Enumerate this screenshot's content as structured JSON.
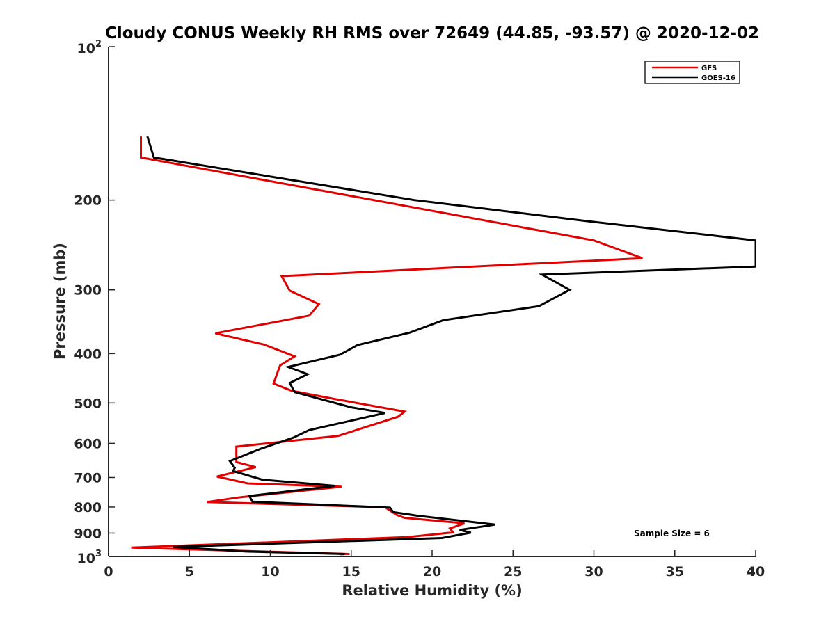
{
  "chart_data": {
    "type": "line",
    "title": "Cloudy CONUS Weekly RH RMS over 72649 (44.85, -93.57) @ 2020-12-02",
    "xlabel": "Relative Humidity (%)",
    "ylabel": "Pressure (mb)",
    "xlim": [
      0,
      40
    ],
    "ylim": [
      100,
      1000
    ],
    "y_scale": "log",
    "y_reversed": true,
    "xticks": [
      0,
      5,
      10,
      15,
      20,
      25,
      30,
      35,
      40
    ],
    "xtick_labels": [
      "0",
      "5",
      "10",
      "15",
      "20",
      "25",
      "30",
      "35",
      "40"
    ],
    "yticks": [
      200,
      300,
      400,
      500,
      600,
      700,
      800,
      900
    ],
    "ytick_labels": [
      "200",
      "300",
      "400",
      "500",
      "600",
      "700",
      "800",
      "900"
    ],
    "ytick_end_labels": {
      "top": {
        "base": "10",
        "exp": "2"
      },
      "bottom": {
        "base": "10",
        "exp": "3"
      }
    },
    "grid": false,
    "legend_position": "top-right",
    "annotation": "Sample Size = 6",
    "series": [
      {
        "name": "GFS",
        "color": "#e00000",
        "points": [
          [
            2.0,
            150
          ],
          [
            2.0,
            165
          ],
          [
            30.0,
            240
          ],
          [
            33.0,
            260
          ],
          [
            10.7,
            282
          ],
          [
            11.2,
            301
          ],
          [
            13.0,
            320
          ],
          [
            12.4,
            337
          ],
          [
            6.6,
            365
          ],
          [
            9.6,
            384
          ],
          [
            11.5,
            405
          ],
          [
            10.6,
            422
          ],
          [
            10.2,
            458
          ],
          [
            11.3,
            473
          ],
          [
            13.8,
            490
          ],
          [
            18.3,
            520
          ],
          [
            17.9,
            532
          ],
          [
            14.2,
            580
          ],
          [
            7.9,
            609
          ],
          [
            7.9,
            653
          ],
          [
            9.1,
            668
          ],
          [
            6.7,
            697
          ],
          [
            8.6,
            719
          ],
          [
            14.4,
            730
          ],
          [
            8.2,
            765
          ],
          [
            6.1,
            782
          ],
          [
            17.1,
            801
          ],
          [
            17.8,
            829
          ],
          [
            18.3,
            840
          ],
          [
            22.0,
            861
          ],
          [
            21.1,
            881
          ],
          [
            21.3,
            897
          ],
          [
            18.5,
            916
          ],
          [
            1.4,
            961
          ],
          [
            14.9,
            989
          ],
          [
            14.3,
            990
          ]
        ]
      },
      {
        "name": "GOES-16",
        "color": "#000000",
        "points": [
          [
            2.4,
            150
          ],
          [
            2.8,
            165
          ],
          [
            18.9,
            200
          ],
          [
            29.6,
            220
          ],
          [
            40.0,
            240
          ],
          [
            40.0,
            270
          ],
          [
            26.8,
            280
          ],
          [
            28.5,
            300
          ],
          [
            26.6,
            323
          ],
          [
            20.7,
            344
          ],
          [
            18.6,
            364
          ],
          [
            15.4,
            385
          ],
          [
            14.3,
            402
          ],
          [
            11.1,
            425
          ],
          [
            12.3,
            439
          ],
          [
            11.2,
            457
          ],
          [
            11.5,
            476
          ],
          [
            15.0,
            510
          ],
          [
            17.1,
            523
          ],
          [
            12.4,
            565
          ],
          [
            11.4,
            585
          ],
          [
            9.4,
            615
          ],
          [
            7.5,
            650
          ],
          [
            7.8,
            670
          ],
          [
            7.7,
            680
          ],
          [
            9.5,
            707
          ],
          [
            14.0,
            727
          ],
          [
            8.7,
            761
          ],
          [
            8.9,
            781
          ],
          [
            17.4,
            802
          ],
          [
            17.6,
            819
          ],
          [
            19.1,
            832
          ],
          [
            23.9,
            866
          ],
          [
            21.7,
            887
          ],
          [
            22.4,
            898
          ],
          [
            20.6,
            920
          ],
          [
            4.0,
            958
          ],
          [
            8.5,
            978
          ],
          [
            14.6,
            989
          ],
          [
            14.3,
            990
          ]
        ]
      }
    ]
  }
}
